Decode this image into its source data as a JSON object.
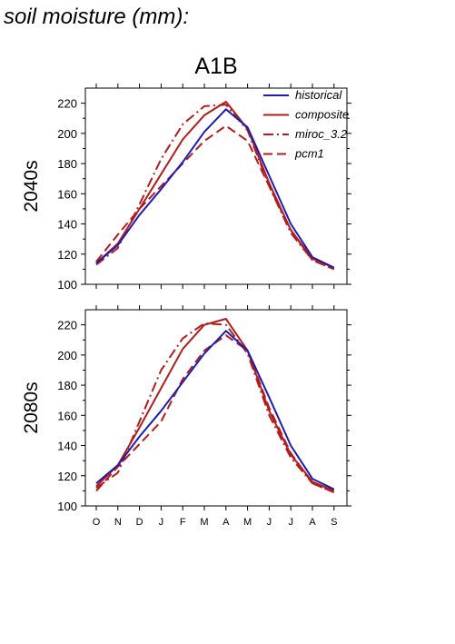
{
  "title": "soil moisture (mm):",
  "colors": {
    "historical": "#1c1cb4",
    "projection": "#b41c1c"
  },
  "chart_data": [
    {
      "type": "line",
      "title": "A1B",
      "ylabel": "2040s",
      "categories": [
        "O",
        "N",
        "D",
        "J",
        "F",
        "M",
        "A",
        "M",
        "J",
        "J",
        "A",
        "S"
      ],
      "yticks": [
        100,
        120,
        140,
        160,
        180,
        200,
        220
      ],
      "ylim": [
        100,
        230
      ],
      "series": [
        {
          "name": "historical",
          "style": "solid",
          "color": "#1c1cb4",
          "values": [
            114,
            126,
            146,
            163,
            181,
            201,
            216,
            204,
            172,
            140,
            118,
            111
          ]
        },
        {
          "name": "composite",
          "style": "solid",
          "color": "#b41c1c",
          "values": [
            114,
            127,
            150,
            173,
            196,
            212,
            221,
            203,
            167,
            136,
            117,
            111
          ]
        },
        {
          "name": "miroc_3.2",
          "style": "dashdot",
          "color": "#b41c1c",
          "values": [
            113,
            124,
            153,
            183,
            206,
            218,
            219,
            202,
            165,
            134,
            116,
            110
          ]
        },
        {
          "name": "pcm1",
          "style": "dash",
          "color": "#b41c1c",
          "values": [
            115,
            133,
            150,
            165,
            180,
            195,
            205,
            195,
            165,
            136,
            116,
            110
          ]
        }
      ]
    },
    {
      "type": "line",
      "title": "",
      "ylabel": "2080s",
      "categories": [
        "O",
        "N",
        "D",
        "J",
        "F",
        "M",
        "A",
        "M",
        "J",
        "J",
        "A",
        "S"
      ],
      "yticks": [
        100,
        120,
        140,
        160,
        180,
        200,
        220
      ],
      "ylim": [
        100,
        230
      ],
      "series": [
        {
          "name": "historical",
          "style": "solid",
          "color": "#1c1cb4",
          "values": [
            115,
            127,
            146,
            163,
            182,
            201,
            216,
            203,
            172,
            140,
            118,
            111
          ]
        },
        {
          "name": "composite",
          "style": "solid",
          "color": "#b41c1c",
          "values": [
            113,
            127,
            152,
            178,
            204,
            220,
            224,
            203,
            163,
            134,
            116,
            110
          ]
        },
        {
          "name": "miroc_3.2",
          "style": "dashdot",
          "color": "#b41c1c",
          "values": [
            112,
            122,
            156,
            190,
            211,
            221,
            220,
            201,
            160,
            132,
            115,
            109
          ]
        },
        {
          "name": "pcm1",
          "style": "dash",
          "color": "#b41c1c",
          "values": [
            110,
            126,
            141,
            156,
            184,
            203,
            213,
            203,
            165,
            135,
            115,
            109
          ]
        }
      ]
    }
  ],
  "legend": {
    "placement": "top-right",
    "items": [
      {
        "label": "historical",
        "style": "solid",
        "color": "#1c1cb4"
      },
      {
        "label": "composite",
        "style": "solid",
        "color": "#b41c1c"
      },
      {
        "label": "miroc_3.2",
        "style": "dashdot",
        "color": "#b41c1c"
      },
      {
        "label": "pcm1",
        "style": "dash",
        "color": "#b41c1c"
      }
    ]
  }
}
